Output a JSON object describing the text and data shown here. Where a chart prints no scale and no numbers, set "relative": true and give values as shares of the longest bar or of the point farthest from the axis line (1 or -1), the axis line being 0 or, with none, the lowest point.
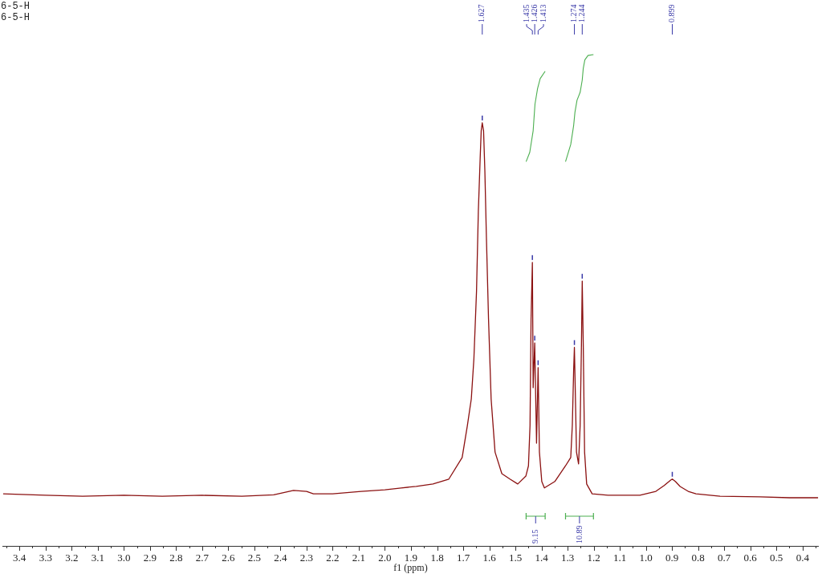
{
  "chart_data": {
    "type": "line",
    "title": "6-5-H",
    "subtitle": "6-5-H",
    "xlabel": "f1 (ppm)",
    "relative": true,
    "grid": false,
    "legend": false,
    "marker": "none",
    "tick_labels": "x",
    "xlim": [
      3.463,
      0.34
    ],
    "xticks": [
      {
        "value": 3.45,
        "label": null
      },
      3.4,
      {
        "value": 3.35,
        "label": null
      },
      3.3,
      {
        "value": 3.25,
        "label": null
      },
      3.2,
      {
        "value": 3.15,
        "label": null
      },
      3.1,
      {
        "value": 3.05,
        "label": null
      },
      {
        "value": 3,
        "label": "3.0"
      },
      {
        "value": 2.95,
        "label": null
      },
      2.9,
      {
        "value": 2.85,
        "label": null
      },
      2.8,
      {
        "value": 2.75,
        "label": null
      },
      2.7,
      {
        "value": 2.65,
        "label": null
      },
      2.6,
      {
        "value": 2.55,
        "label": null
      },
      2.5,
      {
        "value": 2.45,
        "label": null
      },
      2.4,
      {
        "value": 2.35,
        "label": null
      },
      2.3,
      {
        "value": 2.25,
        "label": null
      },
      2.2,
      {
        "value": 2.15,
        "label": null
      },
      2.1,
      {
        "value": 2.05,
        "label": null
      },
      {
        "value": 2,
        "label": "2.0"
      },
      {
        "value": 1.95,
        "label": null
      },
      1.9,
      {
        "value": 1.85,
        "label": null
      },
      1.8,
      {
        "value": 1.75,
        "label": null
      },
      1.7,
      {
        "value": 1.65,
        "label": null
      },
      1.6,
      {
        "value": 1.55,
        "label": null
      },
      1.5,
      {
        "value": 1.45,
        "label": null
      },
      1.4,
      {
        "value": 1.35,
        "label": null
      },
      1.3,
      {
        "value": 1.25,
        "label": null
      },
      1.2,
      {
        "value": 1.15,
        "label": null
      },
      1.1,
      {
        "value": 1.05,
        "label": null
      },
      {
        "value": 1,
        "label": "1.0"
      },
      {
        "value": 0.95,
        "label": null
      },
      0.9,
      {
        "value": 0.85,
        "label": null
      },
      0.8,
      {
        "value": 0.75,
        "label": null
      },
      0.7,
      {
        "value": 0.65,
        "label": null
      },
      0.6,
      {
        "value": 0.55,
        "label": null
      },
      0.5,
      {
        "value": 0.45,
        "label": null
      },
      0.4,
      {
        "value": 0.35,
        "label": null
      }
    ],
    "series": [
      {
        "color": "#8b1111",
        "x": [
          3.463,
          3.3,
          3.158,
          3.0,
          2.853,
          2.7,
          2.548,
          2.426,
          2.35,
          2.3,
          2.274,
          2.2,
          2.091,
          2.0,
          1.938,
          1.88,
          1.816,
          1.755,
          1.704,
          1.684,
          1.669,
          1.659,
          1.649,
          1.642,
          1.635,
          1.631,
          1.627,
          1.622,
          1.617,
          1.611,
          1.603,
          1.593,
          1.578,
          1.552,
          1.521,
          1.491,
          1.46,
          1.45,
          1.444,
          1.44,
          1.435,
          1.432,
          1.426,
          1.419,
          1.413,
          1.408,
          1.399,
          1.389,
          1.349,
          1.308,
          1.288,
          1.282,
          1.277,
          1.274,
          1.27,
          1.266,
          1.258,
          1.252,
          1.247,
          1.244,
          1.24,
          1.235,
          1.227,
          1.206,
          1.145,
          1.023,
          0.962,
          0.93,
          0.905,
          0.899,
          0.887,
          0.869,
          0.838,
          0.808,
          0.716,
          0.564,
          0.45,
          0.34
        ],
        "values": [
          0.106,
          0.103,
          0.101,
          0.103,
          0.101,
          0.103,
          0.101,
          0.104,
          0.113,
          0.111,
          0.106,
          0.106,
          0.111,
          0.114,
          0.118,
          0.121,
          0.126,
          0.136,
          0.18,
          0.245,
          0.299,
          0.381,
          0.518,
          0.681,
          0.789,
          0.845,
          0.861,
          0.845,
          0.763,
          0.626,
          0.462,
          0.299,
          0.191,
          0.147,
          0.136,
          0.126,
          0.142,
          0.163,
          0.245,
          0.462,
          0.577,
          0.322,
          0.413,
          0.209,
          0.363,
          0.191,
          0.131,
          0.118,
          0.131,
          0.163,
          0.18,
          0.245,
          0.355,
          0.404,
          0.299,
          0.191,
          0.167,
          0.245,
          0.408,
          0.539,
          0.408,
          0.191,
          0.126,
          0.106,
          0.103,
          0.103,
          0.111,
          0.123,
          0.134,
          0.136,
          0.131,
          0.121,
          0.111,
          0.106,
          0.101,
          0.1,
          0.098,
          0.098
        ]
      },
      {
        "color": "#4caf50",
        "x": [
          1.459,
          1.445,
          1.432,
          1.425,
          1.415,
          1.405,
          1.386
        ],
        "values": [
          0.782,
          0.801,
          0.845,
          0.899,
          0.931,
          0.951,
          0.966
        ]
      },
      {
        "color": "#4caf50",
        "x": [
          1.308,
          1.288,
          1.277,
          1.272,
          1.264,
          1.252,
          1.244,
          1.24,
          1.234,
          1.222,
          1.201
        ],
        "values": [
          0.782,
          0.817,
          0.855,
          0.882,
          0.907,
          0.923,
          0.948,
          0.972,
          0.989,
          0.998,
          1.0
        ]
      }
    ],
    "annotations": [
      {
        "text": "1.627",
        "x": 1.627
      },
      {
        "text": "1.435",
        "x": 1.435
      },
      {
        "text": "1.426",
        "x": 1.426
      },
      {
        "text": "1.413",
        "x": 1.413
      },
      {
        "text": "1.274",
        "x": 1.274
      },
      {
        "text": "1.244",
        "x": 1.244
      },
      {
        "text": "0.899",
        "x": 0.899
      },
      "9.15",
      "10.89"
    ]
  }
}
